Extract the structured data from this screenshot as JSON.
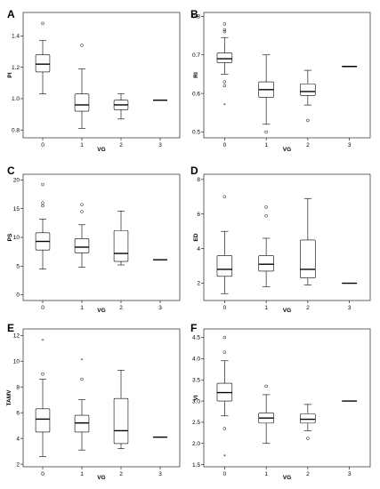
{
  "chart_data": [
    {
      "type": "box",
      "panel": "A",
      "xlabel": "VG",
      "ylabel": "PI",
      "categories": [
        "0",
        "1",
        "2",
        "3"
      ],
      "ylim": [
        0.75,
        1.55
      ],
      "yticks": [
        0.8,
        1.0,
        1.2,
        1.4
      ],
      "yticklabels": [
        "0.8",
        "1.0",
        "1.2",
        "1.4"
      ],
      "boxes": [
        {
          "category": "0",
          "min": 1.03,
          "q1": 1.17,
          "median": 1.22,
          "q3": 1.28,
          "max": 1.37,
          "outliers": [
            1.48
          ],
          "extremes": []
        },
        {
          "category": "1",
          "min": 0.81,
          "q1": 0.92,
          "median": 0.96,
          "q3": 1.03,
          "max": 1.19,
          "outliers": [
            1.34
          ],
          "extremes": []
        },
        {
          "category": "2",
          "min": 0.87,
          "q1": 0.93,
          "median": 0.96,
          "q3": 0.99,
          "max": 1.03,
          "outliers": [],
          "extremes": []
        },
        {
          "category": "3",
          "min": 0.99,
          "q1": 0.99,
          "median": 0.99,
          "q3": 0.99,
          "max": 0.99,
          "outliers": [],
          "extremes": []
        }
      ]
    },
    {
      "type": "box",
      "panel": "B",
      "xlabel": "VG",
      "ylabel": "RI",
      "categories": [
        "0",
        "1",
        "2",
        "3"
      ],
      "ylim": [
        0.485,
        0.81
      ],
      "yticks": [
        0.5,
        0.6,
        0.7,
        0.8
      ],
      "yticklabels": [
        "0.5",
        "0.6",
        "0.7",
        "0.8"
      ],
      "boxes": [
        {
          "category": "0",
          "min": 0.65,
          "q1": 0.68,
          "median": 0.69,
          "q3": 0.705,
          "max": 0.745,
          "outliers": [
            0.78,
            0.765,
            0.76,
            0.63,
            0.62
          ],
          "extremes": [
            0.57
          ]
        },
        {
          "category": "1",
          "min": 0.52,
          "q1": 0.59,
          "median": 0.61,
          "q3": 0.63,
          "max": 0.7,
          "outliers": [
            0.5
          ],
          "extremes": []
        },
        {
          "category": "2",
          "min": 0.57,
          "q1": 0.595,
          "median": 0.605,
          "q3": 0.625,
          "max": 0.66,
          "outliers": [
            0.53
          ],
          "extremes": []
        },
        {
          "category": "3",
          "min": 0.67,
          "q1": 0.67,
          "median": 0.67,
          "q3": 0.67,
          "max": 0.67,
          "outliers": [],
          "extremes": []
        }
      ]
    },
    {
      "type": "box",
      "panel": "C",
      "xlabel": "VG",
      "ylabel": "PS",
      "categories": [
        "0",
        "1",
        "2",
        "3"
      ],
      "ylim": [
        -1,
        21
      ],
      "yticks": [
        0,
        5,
        10,
        15,
        20
      ],
      "yticklabels": [
        "0",
        "5",
        "10",
        "15",
        "20"
      ],
      "boxes": [
        {
          "category": "0",
          "min": 4.5,
          "q1": 7.8,
          "median": 9.3,
          "q3": 10.8,
          "max": 13.2,
          "outliers": [
            19.2,
            16.0,
            15.5
          ],
          "extremes": []
        },
        {
          "category": "1",
          "min": 4.8,
          "q1": 7.3,
          "median": 8.3,
          "q3": 9.8,
          "max": 12.2,
          "outliers": [
            15.7,
            14.5
          ],
          "extremes": []
        },
        {
          "category": "2",
          "min": 5.2,
          "q1": 5.8,
          "median": 7.2,
          "q3": 11.2,
          "max": 14.6,
          "outliers": [],
          "extremes": []
        },
        {
          "category": "3",
          "min": 6.1,
          "q1": 6.1,
          "median": 6.1,
          "q3": 6.1,
          "max": 6.1,
          "outliers": [],
          "extremes": []
        }
      ]
    },
    {
      "type": "box",
      "panel": "D",
      "xlabel": "VG",
      "ylabel": "ED",
      "categories": [
        "0",
        "1",
        "2",
        "3"
      ],
      "ylim": [
        1.0,
        8.3
      ],
      "yticks": [
        2,
        4,
        6,
        8
      ],
      "yticklabels": [
        "2",
        "4",
        "6",
        "8"
      ],
      "boxes": [
        {
          "category": "0",
          "min": 1.4,
          "q1": 2.4,
          "median": 2.8,
          "q3": 3.6,
          "max": 5.0,
          "outliers": [
            7.0
          ],
          "extremes": []
        },
        {
          "category": "1",
          "min": 1.8,
          "q1": 2.7,
          "median": 3.1,
          "q3": 3.6,
          "max": 4.6,
          "outliers": [
            6.4,
            5.9
          ],
          "extremes": []
        },
        {
          "category": "2",
          "min": 1.9,
          "q1": 2.3,
          "median": 2.8,
          "q3": 4.5,
          "max": 6.9,
          "outliers": [],
          "extremes": []
        },
        {
          "category": "3",
          "min": 2.0,
          "q1": 2.0,
          "median": 2.0,
          "q3": 2.0,
          "max": 2.0,
          "outliers": [],
          "extremes": []
        }
      ]
    },
    {
      "type": "box",
      "panel": "E",
      "xlabel": "VG",
      "ylabel": "TAMV",
      "categories": [
        "0",
        "1",
        "2",
        "3"
      ],
      "ylim": [
        1.8,
        12.5
      ],
      "yticks": [
        2,
        4,
        6,
        8,
        10,
        12
      ],
      "yticklabels": [
        "2",
        "4",
        "6",
        "8",
        "10",
        "12"
      ],
      "boxes": [
        {
          "category": "0",
          "min": 2.6,
          "q1": 4.5,
          "median": 5.5,
          "q3": 6.3,
          "max": 8.6,
          "outliers": [
            9.0
          ],
          "extremes": [
            11.6
          ]
        },
        {
          "category": "1",
          "min": 3.1,
          "q1": 4.5,
          "median": 5.2,
          "q3": 5.8,
          "max": 7.0,
          "outliers": [
            8.6
          ],
          "extremes": [
            10.1
          ]
        },
        {
          "category": "2",
          "min": 3.2,
          "q1": 3.6,
          "median": 4.6,
          "q3": 7.1,
          "max": 9.3,
          "outliers": [],
          "extremes": []
        },
        {
          "category": "3",
          "min": 4.1,
          "q1": 4.1,
          "median": 4.1,
          "q3": 4.1,
          "max": 4.1,
          "outliers": [],
          "extremes": []
        }
      ]
    },
    {
      "type": "box",
      "panel": "F",
      "xlabel": "VG",
      "ylabel": "VI",
      "categories": [
        "0",
        "1",
        "2",
        "3"
      ],
      "ylim": [
        1.45,
        4.7
      ],
      "yticks": [
        1.5,
        2.0,
        2.5,
        3.0,
        3.5,
        4.0,
        4.5
      ],
      "yticklabels": [
        "1.5",
        "2.0",
        "2.5",
        "3.0",
        "3.5",
        "4.0",
        "4.5"
      ],
      "boxes": [
        {
          "category": "0",
          "min": 2.65,
          "q1": 3.0,
          "median": 3.2,
          "q3": 3.42,
          "max": 3.95,
          "outliers": [
            4.5,
            4.15,
            2.35
          ],
          "extremes": [
            1.7
          ]
        },
        {
          "category": "1",
          "min": 2.0,
          "q1": 2.48,
          "median": 2.6,
          "q3": 2.72,
          "max": 3.15,
          "outliers": [
            3.35
          ],
          "extremes": []
        },
        {
          "category": "2",
          "min": 2.3,
          "q1": 2.48,
          "median": 2.57,
          "q3": 2.7,
          "max": 2.92,
          "outliers": [
            2.12
          ],
          "extremes": []
        },
        {
          "category": "3",
          "min": 3.0,
          "q1": 3.0,
          "median": 3.0,
          "q3": 3.0,
          "max": 3.0,
          "outliers": [],
          "extremes": []
        }
      ]
    }
  ]
}
